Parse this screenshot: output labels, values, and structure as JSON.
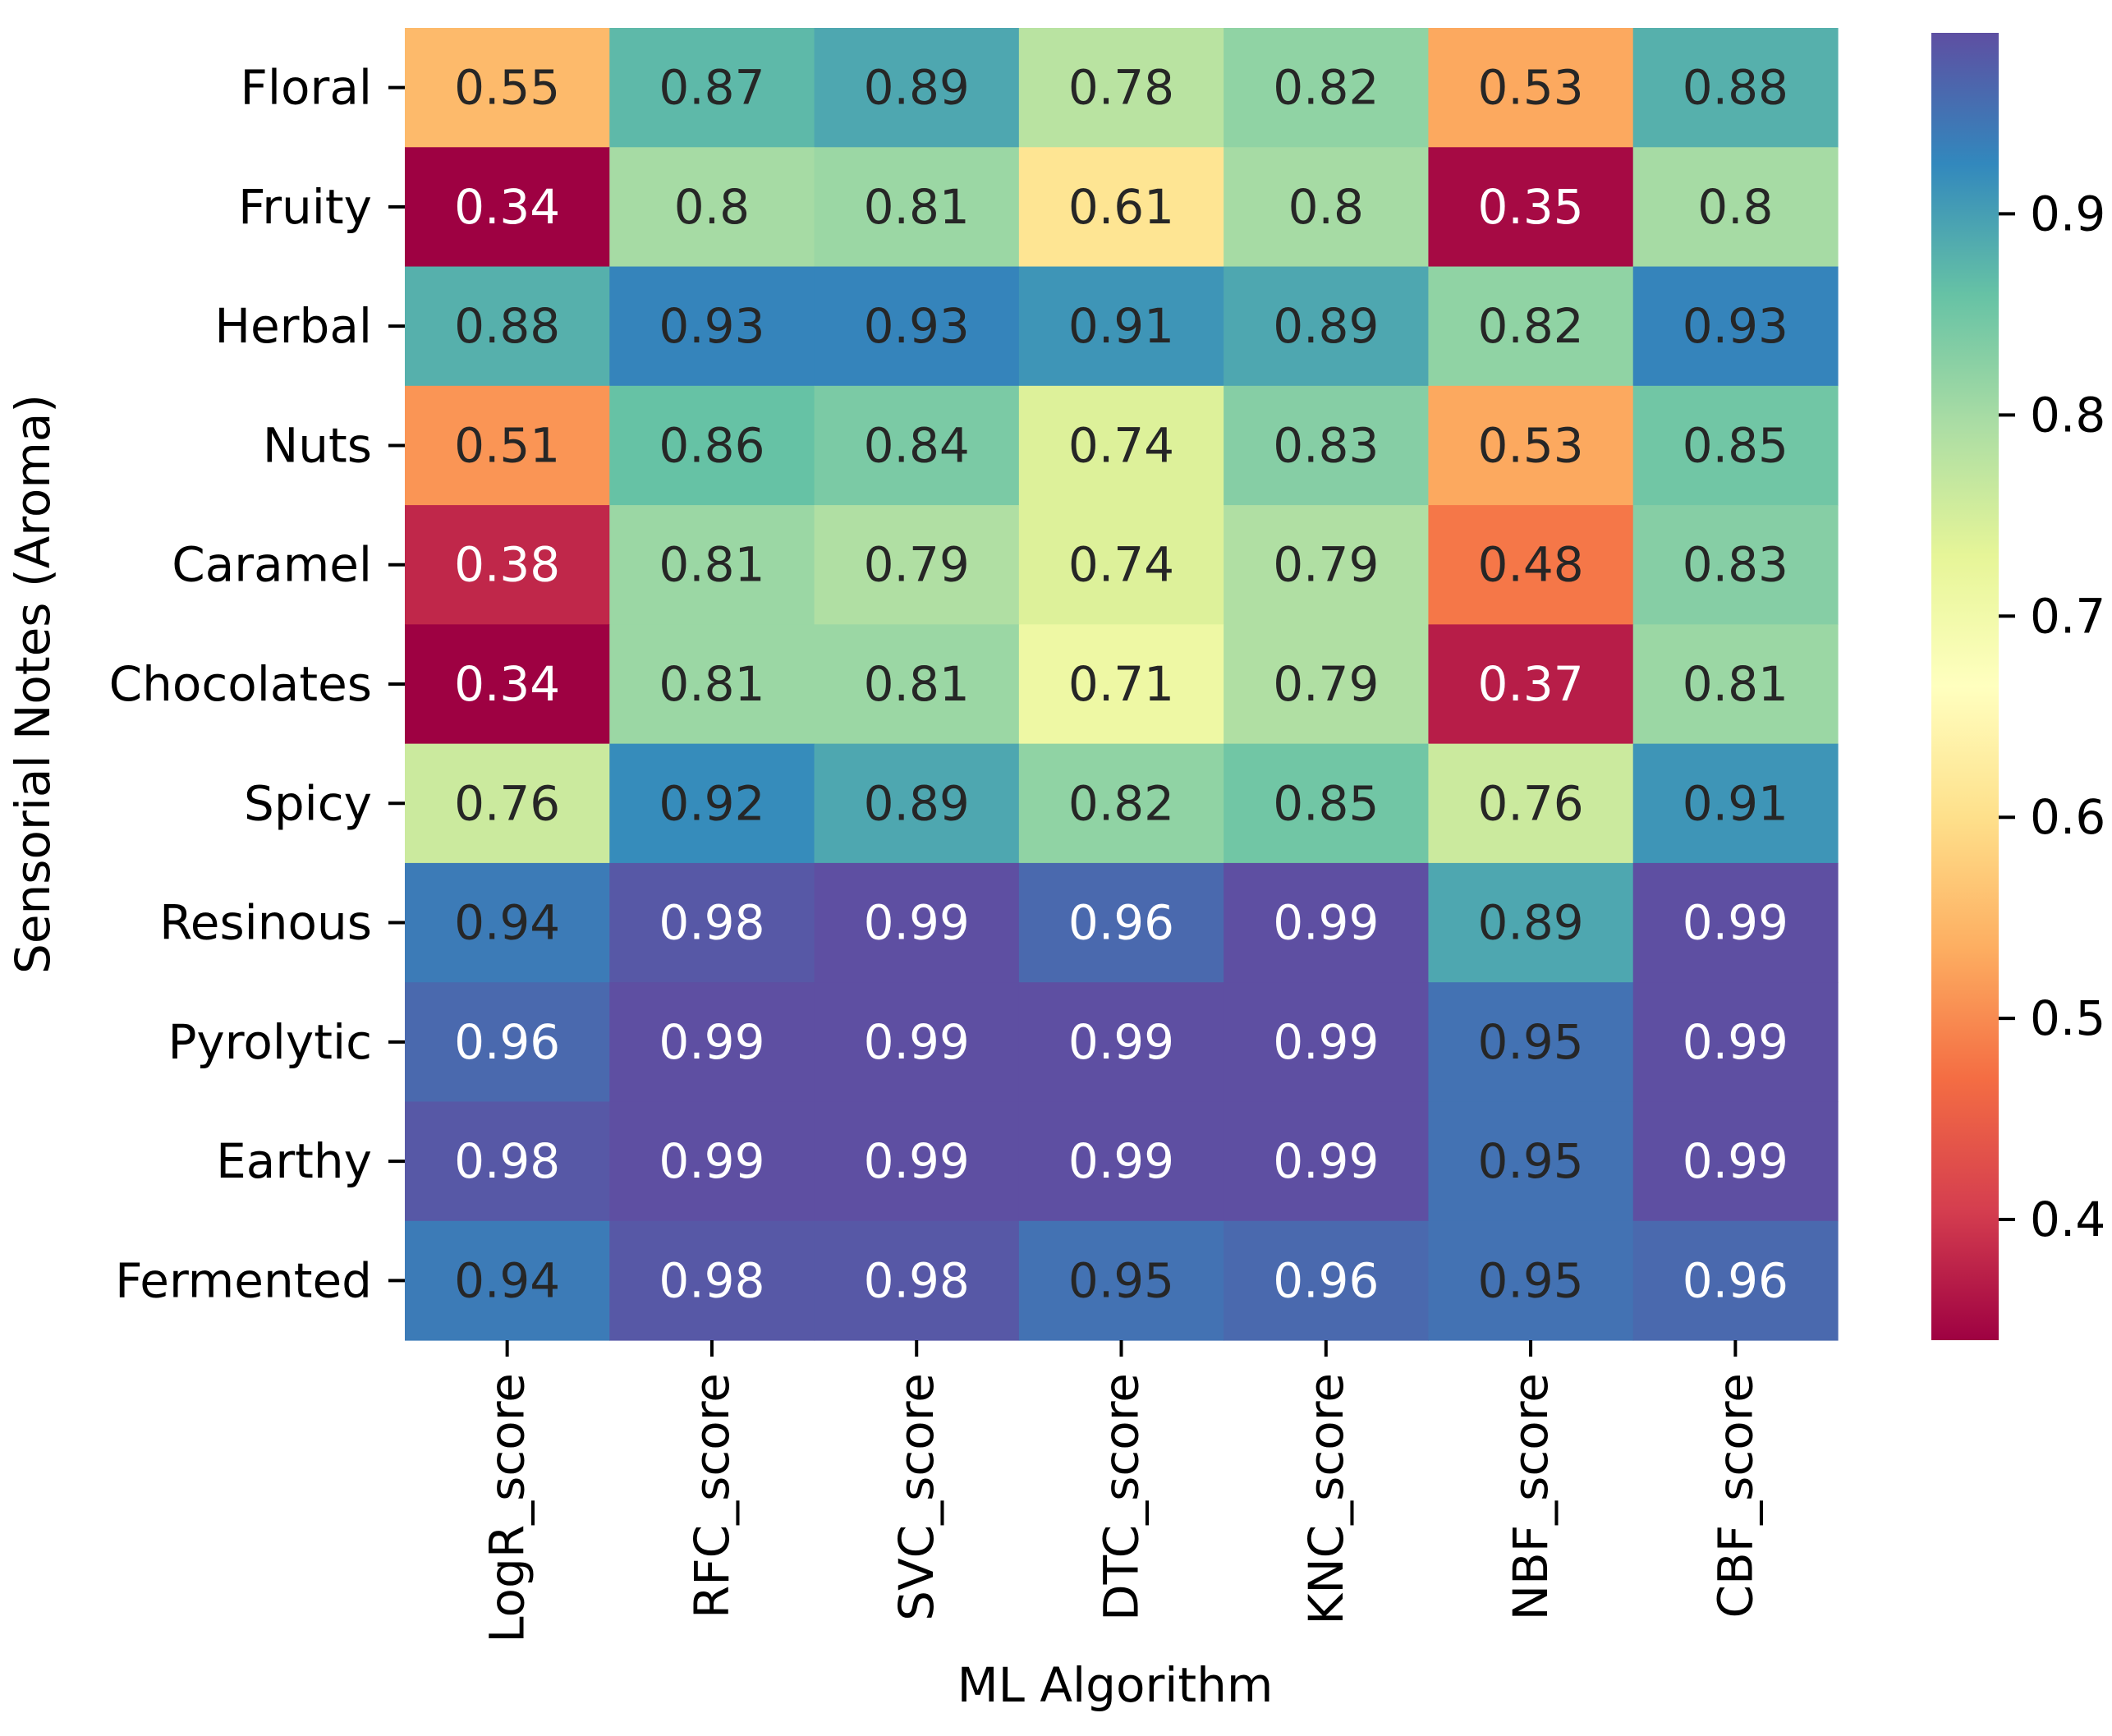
{
  "chart_data": {
    "type": "heatmap",
    "title": "",
    "xlabel": "ML Algorithm",
    "ylabel": "Sensorial Notes (Aroma)",
    "rows": [
      "Floral",
      "Fruity",
      "Herbal",
      "Nuts",
      "Caramel",
      "Chocolates",
      "Spicy",
      "Resinous",
      "Pyrolytic",
      "Earthy",
      "Fermented"
    ],
    "columns": [
      "LogR_score",
      "RFC_score",
      "SVC_score",
      "DTC_score",
      "KNC_score",
      "NBF_score",
      "CBF_score"
    ],
    "values": [
      [
        0.55,
        0.87,
        0.89,
        0.78,
        0.82,
        0.53,
        0.88
      ],
      [
        0.34,
        0.8,
        0.81,
        0.61,
        0.8,
        0.35,
        0.8
      ],
      [
        0.88,
        0.93,
        0.93,
        0.91,
        0.89,
        0.82,
        0.93
      ],
      [
        0.51,
        0.86,
        0.84,
        0.74,
        0.83,
        0.53,
        0.85
      ],
      [
        0.38,
        0.81,
        0.79,
        0.74,
        0.79,
        0.48,
        0.83
      ],
      [
        0.34,
        0.81,
        0.81,
        0.71,
        0.79,
        0.37,
        0.81
      ],
      [
        0.76,
        0.92,
        0.89,
        0.82,
        0.85,
        0.76,
        0.91
      ],
      [
        0.94,
        0.98,
        0.99,
        0.96,
        0.99,
        0.89,
        0.99
      ],
      [
        0.96,
        0.99,
        0.99,
        0.99,
        0.99,
        0.95,
        0.99
      ],
      [
        0.98,
        0.99,
        0.99,
        0.99,
        0.99,
        0.95,
        0.99
      ],
      [
        0.94,
        0.98,
        0.98,
        0.95,
        0.96,
        0.95,
        0.96
      ]
    ],
    "value_labels": [
      [
        "0.55",
        "0.87",
        "0.89",
        "0.78",
        "0.82",
        "0.53",
        "0.88"
      ],
      [
        "0.34",
        "0.8",
        "0.81",
        "0.61",
        "0.8",
        "0.35",
        "0.8"
      ],
      [
        "0.88",
        "0.93",
        "0.93",
        "0.91",
        "0.89",
        "0.82",
        "0.93"
      ],
      [
        "0.51",
        "0.86",
        "0.84",
        "0.74",
        "0.83",
        "0.53",
        "0.85"
      ],
      [
        "0.38",
        "0.81",
        "0.79",
        "0.74",
        "0.79",
        "0.48",
        "0.83"
      ],
      [
        "0.34",
        "0.81",
        "0.81",
        "0.71",
        "0.79",
        "0.37",
        "0.81"
      ],
      [
        "0.76",
        "0.92",
        "0.89",
        "0.82",
        "0.85",
        "0.76",
        "0.91"
      ],
      [
        "0.94",
        "0.98",
        "0.99",
        "0.96",
        "0.99",
        "0.89",
        "0.99"
      ],
      [
        "0.96",
        "0.99",
        "0.99",
        "0.99",
        "0.99",
        "0.95",
        "0.99"
      ],
      [
        "0.98",
        "0.99",
        "0.99",
        "0.99",
        "0.99",
        "0.95",
        "0.99"
      ],
      [
        "0.94",
        "0.98",
        "0.98",
        "0.95",
        "0.96",
        "0.95",
        "0.96"
      ]
    ],
    "colormap": "Spectral",
    "vmin": 0.34,
    "vmax": 0.99,
    "colorbar_ticks": [
      "0.4",
      "0.5",
      "0.6",
      "0.7",
      "0.8",
      "0.9"
    ],
    "colorbar_tick_values": [
      0.4,
      0.5,
      0.6,
      0.7,
      0.8,
      0.9
    ],
    "legend": "colorbar-right",
    "grid": false,
    "colormap_stops": [
      "#9e0142",
      "#d53e4f",
      "#f46d43",
      "#fdae61",
      "#fee08b",
      "#ffffbf",
      "#e6f598",
      "#abdda4",
      "#66c2a5",
      "#3288bd",
      "#5e4fa2"
    ],
    "text_color_dark": "#262626",
    "text_color_light": "#ffffff"
  }
}
